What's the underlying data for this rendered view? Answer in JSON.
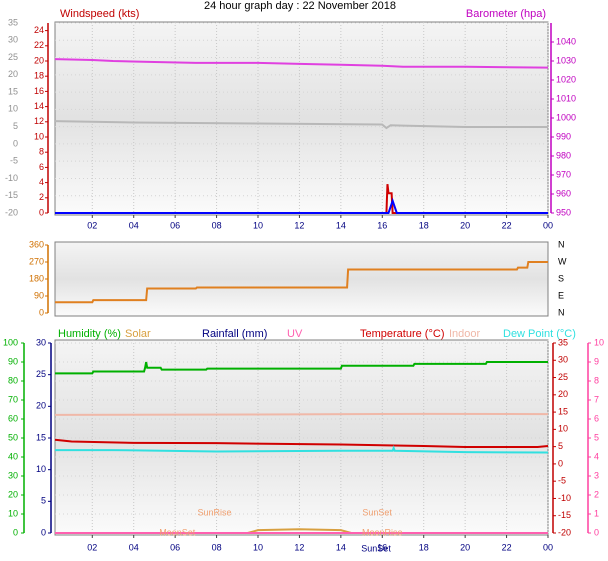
{
  "title": "24 hour graph day : 22 November 2018",
  "chart_data": [
    {
      "type": "line",
      "xlim": [
        0.2,
        24
      ],
      "grid": true,
      "xticks": [
        {
          "value": 2,
          "label": "02"
        },
        {
          "value": 4,
          "label": "04"
        },
        {
          "value": 6,
          "label": "06"
        },
        {
          "value": 8,
          "label": "08"
        },
        10,
        12,
        14,
        16,
        18,
        20,
        22,
        {
          "value": 24,
          "label": "00"
        }
      ],
      "axes": [
        {
          "color": "#909090",
          "ylim": [
            -20,
            35
          ],
          "yticks": [
            -20,
            -15,
            -10,
            -5,
            0,
            5,
            10,
            15,
            20,
            25,
            30,
            35
          ]
        },
        {
          "name": "Windspeed (kts)",
          "color": "#c00000",
          "ylim": [
            0,
            25
          ],
          "yticks": [
            0,
            2,
            4,
            6,
            8,
            10,
            12,
            14,
            16,
            18,
            20,
            22,
            24
          ]
        },
        {
          "name": "Barometer (hpa)",
          "color": "#c000c0",
          "ylim": [
            950,
            1050
          ],
          "yticks": [
            950,
            960,
            970,
            980,
            990,
            1000,
            1010,
            1020,
            1030,
            1040
          ]
        }
      ],
      "series": [
        {
          "axis": 2,
          "color": "#e040e0",
          "x": [
            0.2,
            2,
            3,
            5,
            7,
            10,
            12,
            14,
            16,
            17,
            20,
            24
          ],
          "values": [
            1031,
            1030.5,
            1030,
            1029.5,
            1029,
            1029,
            1028.5,
            1028,
            1027.5,
            1027,
            1027,
            1026.5
          ]
        },
        {
          "axis": 0,
          "color": "#b8b8b8",
          "x": [
            0.2,
            4,
            10,
            16,
            16.2,
            16.4,
            17,
            20,
            24
          ],
          "values": [
            6.6,
            6.2,
            5.9,
            5.6,
            4.6,
            5.4,
            5.3,
            4.9,
            4.9
          ]
        },
        {
          "axis": 1,
          "color": "#d00000",
          "x": [
            0.2,
            16.2,
            16.25,
            16.3,
            16.45,
            16.5,
            16.6,
            24
          ],
          "values": [
            0,
            0,
            3.8,
            2.6,
            2.6,
            0,
            0,
            0
          ]
        },
        {
          "axis": 1,
          "color": "#0000ff",
          "x": [
            0.2,
            16.3,
            16.5,
            16.7,
            24
          ],
          "values": [
            0,
            0,
            1.6,
            0,
            0
          ]
        }
      ]
    },
    {
      "type": "line",
      "xlim": [
        0.2,
        24
      ],
      "grid": false,
      "axes": [
        {
          "color": "#d07000",
          "ylim": [
            0,
            360
          ],
          "yticks": [
            0,
            90,
            180,
            270,
            360
          ]
        },
        {
          "color": "#000000",
          "ylim": [
            0,
            360
          ],
          "yticks": [
            {
              "value": 0,
              "label": "N"
            },
            {
              "value": 90,
              "label": "E"
            },
            {
              "value": 180,
              "label": "S"
            },
            {
              "value": 270,
              "label": "W"
            },
            {
              "value": 360,
              "label": "N"
            }
          ]
        }
      ],
      "series": [
        {
          "axis": 0,
          "color": "#e08020",
          "x": [
            0.2,
            2,
            2.05,
            4.6,
            4.65,
            7,
            7.05,
            14.3,
            14.35,
            22.5,
            22.55,
            23,
            23.05,
            24
          ],
          "values": [
            57,
            57,
            68,
            68,
            130,
            130,
            135,
            135,
            230,
            230,
            240,
            240,
            270,
            270
          ]
        }
      ]
    },
    {
      "type": "line",
      "xlim": [
        0.2,
        24
      ],
      "grid": true,
      "xticks": [
        {
          "value": 2,
          "label": "02"
        },
        {
          "value": 4,
          "label": "04"
        },
        {
          "value": 6,
          "label": "06"
        },
        {
          "value": 8,
          "label": "08"
        },
        10,
        12,
        14,
        16,
        18,
        20,
        22,
        {
          "value": 24,
          "label": "00"
        }
      ],
      "axes": [
        {
          "color": "#00b000",
          "ylim": [
            0,
            100
          ],
          "yticks": [
            0,
            10,
            20,
            30,
            40,
            50,
            60,
            70,
            80,
            90,
            100
          ]
        },
        {
          "color": "#000080",
          "ylim": [
            0,
            30
          ],
          "yticks": [
            0,
            5,
            10,
            15,
            20,
            25,
            30
          ]
        },
        {
          "color": "#c00000",
          "ylim": [
            -20,
            35
          ],
          "yticks": [
            -20,
            -15,
            -10,
            -5,
            0,
            5,
            10,
            15,
            20,
            25,
            30,
            35
          ]
        },
        {
          "color": "#ff40a0",
          "ylim": [
            0,
            10
          ],
          "yticks": [
            0,
            1,
            2,
            3,
            4,
            5,
            6,
            7,
            8,
            9,
            10
          ]
        }
      ],
      "series": [
        {
          "name": "Humidity (%)",
          "axis": 0,
          "color": "#00b000",
          "x": [
            0.2,
            2,
            2.05,
            4.5,
            4.55,
            4.6,
            4.65,
            5.3,
            5.35,
            7.5,
            7.55,
            14,
            14.05,
            17.5,
            17.55,
            21,
            21.05,
            24
          ],
          "values": [
            84,
            84,
            85,
            85,
            87,
            90,
            87,
            87,
            86,
            86,
            86.5,
            86.5,
            88,
            88,
            89,
            89,
            90,
            90
          ]
        },
        {
          "name": "Solar",
          "axis": 0,
          "color": "#d8a040",
          "x": [
            0.2,
            9.5,
            10,
            12,
            14,
            14.5,
            24
          ],
          "values": [
            0,
            0,
            1.5,
            2,
            1.5,
            0,
            0
          ]
        },
        {
          "name": "Rainfall (mm)",
          "axis": 1,
          "color": "#000080",
          "x": [
            0.2,
            24
          ],
          "values": [
            0,
            0
          ]
        },
        {
          "name": "UV",
          "axis": 3,
          "color": "#ff60b0",
          "x": [
            0.2,
            24
          ],
          "values": [
            0,
            0
          ]
        },
        {
          "name": "Temperature (°C)",
          "axis": 2,
          "color": "#d00000",
          "x": [
            0.2,
            1,
            4,
            8,
            14,
            18,
            20,
            23.5,
            24
          ],
          "values": [
            7,
            6.5,
            6.1,
            6,
            5.6,
            5.2,
            4.9,
            4.9,
            5.2
          ]
        },
        {
          "name": "Indoor",
          "axis": 2,
          "color": "#f0b8a8",
          "x": [
            0.2,
            10,
            18,
            24
          ],
          "values": [
            14.2,
            14.3,
            14.5,
            14.4
          ]
        },
        {
          "name": "Dew Point (°C)",
          "axis": 2,
          "color": "#30e0e0",
          "x": [
            0.2,
            3,
            8,
            14,
            16.5,
            16.55,
            16.6,
            20,
            24
          ],
          "values": [
            4,
            4,
            3.6,
            3.8,
            3.8,
            4.6,
            3.8,
            3.4,
            3.3
          ]
        }
      ],
      "annotations": [
        {
          "text": "SunRise",
          "x": 7.9,
          "color": "#f0a070"
        },
        {
          "text": "SunSet",
          "x": 15.75,
          "color": "#f0a070"
        },
        {
          "text": "MoonSet",
          "x": 6.1,
          "color": "#f0a070"
        },
        {
          "text": "MoonRise",
          "x": 16.0,
          "color": "#f0a070"
        },
        {
          "text": "SunSet",
          "x": 15.7,
          "color": "#000080"
        }
      ]
    }
  ]
}
